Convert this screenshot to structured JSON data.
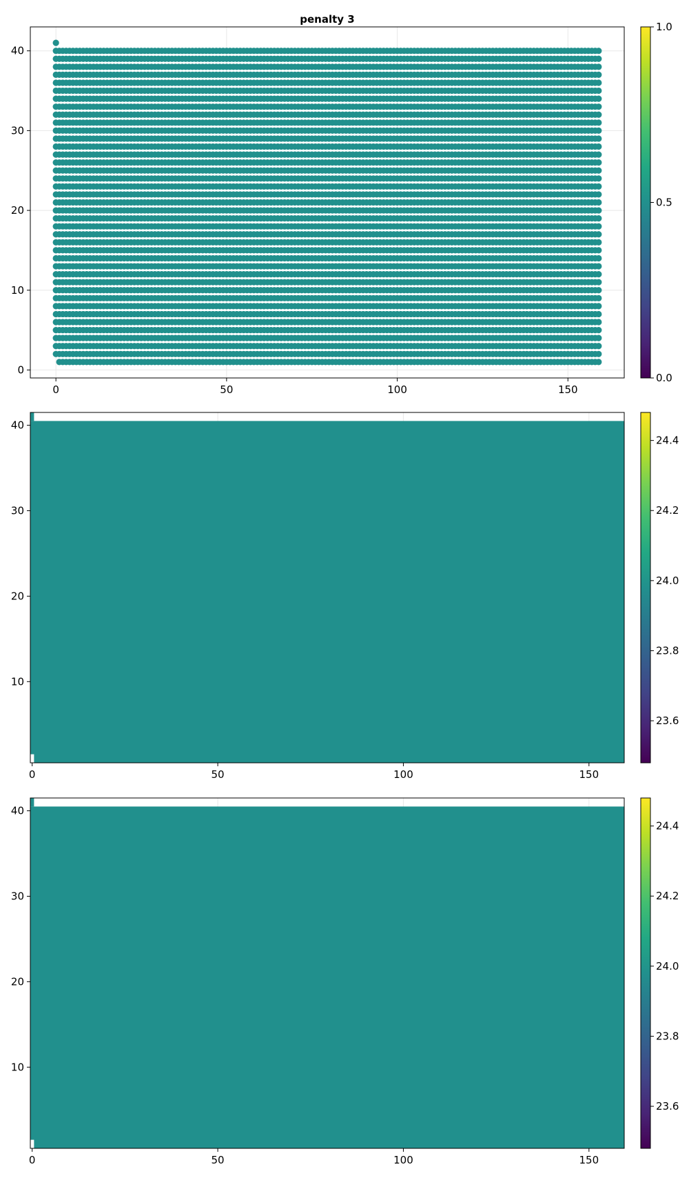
{
  "chart_data": [
    {
      "type": "scatter",
      "title": "penalty 3",
      "xlabel": "",
      "ylabel": "",
      "xlim": [
        -7.5,
        166.5
      ],
      "ylim": [
        -1,
        43
      ],
      "xticks": [
        0,
        50,
        100,
        150
      ],
      "yticks": [
        0,
        10,
        20,
        30,
        40
      ],
      "grid": true,
      "point_grid": {
        "x_start": 0,
        "x_end": 159,
        "x_step": 1,
        "y_start": 1,
        "y_end": 40,
        "y_step": 1,
        "extra_points": [
          [
            0,
            41
          ]
        ]
      },
      "point_color": "#21908d",
      "colorbar": {
        "range": [
          0.0,
          1.0
        ],
        "ticks": [
          0.0,
          0.5,
          1.0
        ],
        "tick_labels": [
          "0.0",
          "0.5",
          "1.0"
        ],
        "colormap": "viridis"
      }
    },
    {
      "type": "heatmap",
      "title": "",
      "xlabel": "",
      "ylabel": "",
      "xlim": [
        -0.5,
        159.5
      ],
      "ylim": [
        0.5,
        41.5
      ],
      "xticks": [
        0,
        50,
        100,
        150
      ],
      "yticks": [
        10,
        20,
        30,
        40
      ],
      "grid": true,
      "fill_value": 24.0,
      "fill_color": "#21908d",
      "filled_x": [
        -0.5,
        159.5
      ],
      "filled_y": [
        0.5,
        40.5
      ],
      "colorbar": {
        "range": [
          23.48,
          24.48
        ],
        "ticks": [
          23.6,
          23.8,
          24.0,
          24.2,
          24.4
        ],
        "tick_labels": [
          "23.6",
          "23.8",
          "24.0",
          "24.2",
          "24.4"
        ],
        "colormap": "viridis"
      }
    },
    {
      "type": "heatmap",
      "title": "",
      "xlabel": "",
      "ylabel": "",
      "xlim": [
        -0.5,
        159.5
      ],
      "ylim": [
        0.5,
        41.5
      ],
      "xticks": [
        0,
        50,
        100,
        150
      ],
      "yticks": [
        10,
        20,
        30,
        40
      ],
      "grid": true,
      "fill_value": 24.0,
      "fill_color": "#21908d",
      "filled_x": [
        -0.5,
        159.5
      ],
      "filled_y": [
        0.5,
        40.5
      ],
      "colorbar": {
        "range": [
          23.48,
          24.48
        ],
        "ticks": [
          23.6,
          23.8,
          24.0,
          24.2,
          24.4
        ],
        "tick_labels": [
          "23.6",
          "23.8",
          "24.0",
          "24.2",
          "24.4"
        ],
        "colormap": "viridis"
      }
    }
  ]
}
